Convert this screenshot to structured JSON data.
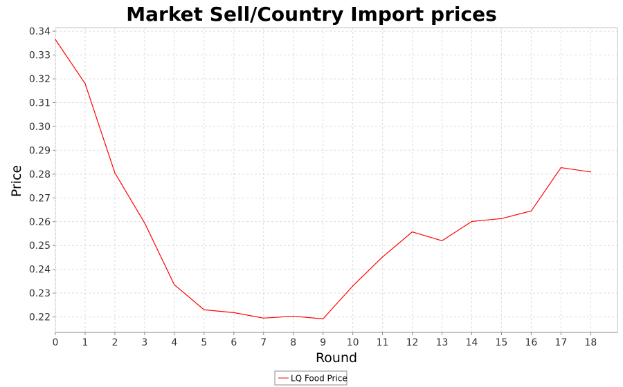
{
  "chart_data": {
    "type": "line",
    "title": "Market Sell/Country Import prices",
    "xlabel": "Round",
    "ylabel": "Price",
    "xlim": [
      0,
      18.9
    ],
    "ylim": [
      0.2135,
      0.3415
    ],
    "grid": true,
    "legend": "bottom-center",
    "x_ticks": [
      "0",
      "1",
      "2",
      "3",
      "4",
      "5",
      "6",
      "7",
      "8",
      "9",
      "10",
      "11",
      "12",
      "13",
      "14",
      "15",
      "16",
      "17",
      "18"
    ],
    "y_ticks": [
      "0.22",
      "0.23",
      "0.24",
      "0.25",
      "0.26",
      "0.27",
      "0.28",
      "0.29",
      "0.30",
      "0.31",
      "0.32",
      "0.33",
      "0.34"
    ],
    "series": [
      {
        "name": "LQ Food Price",
        "color": "#ff0000",
        "x": [
          0,
          1,
          2,
          3,
          4,
          5,
          6,
          7,
          8,
          9,
          10,
          11,
          12,
          13,
          14,
          15,
          16,
          17,
          18
        ],
        "y": [
          0.3365,
          0.318,
          0.2805,
          0.2595,
          0.2335,
          0.223,
          0.2218,
          0.2195,
          0.2203,
          0.2192,
          0.233,
          0.2452,
          0.2557,
          0.252,
          0.2601,
          0.2613,
          0.2645,
          0.2827,
          0.2809
        ]
      }
    ]
  }
}
